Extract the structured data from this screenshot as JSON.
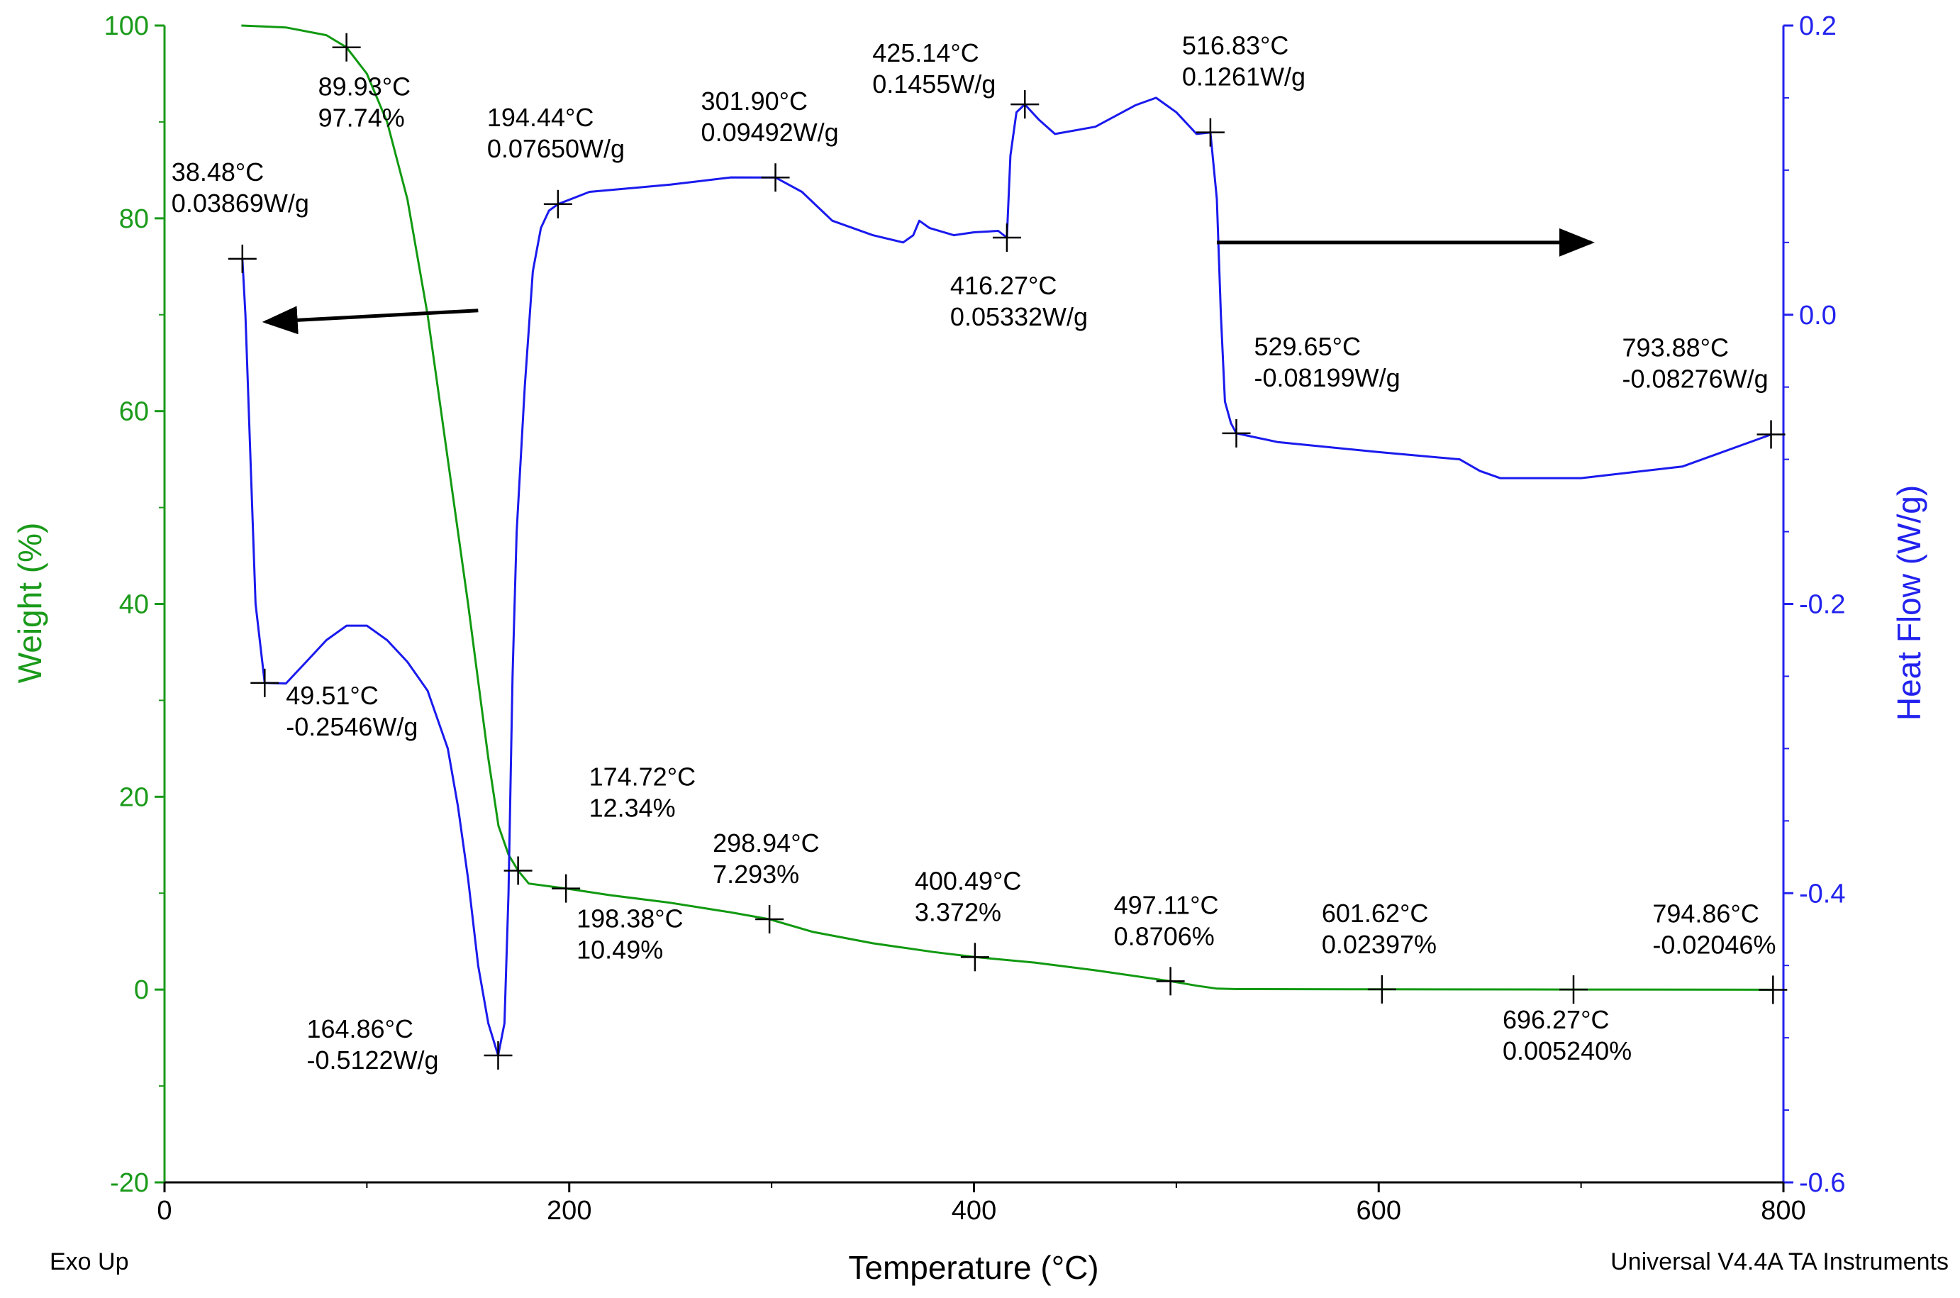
{
  "chart_data": {
    "type": "line",
    "xlabel": "Temperature (°C)",
    "ylabel_left": "Weight (%)",
    "ylabel_right": "Heat Flow (W/g)",
    "xlim": [
      0,
      800
    ],
    "ylim_left": [
      -20,
      100
    ],
    "ylim_right": [
      -0.6,
      0.2
    ],
    "x_ticks": [
      "0",
      "200",
      "400",
      "600",
      "800"
    ],
    "y_ticks_left": [
      "-20",
      "0",
      "20",
      "40",
      "60",
      "80",
      "100"
    ],
    "y_ticks_right": [
      "-0.6",
      "-0.4",
      "-0.2",
      "0.0",
      "0.2"
    ],
    "colors": {
      "weight": "#119911",
      "heat": "#1a1aee",
      "axis_left": "#1a9a1a",
      "axis_right": "#2222ee"
    },
    "footer_left": "Exo Up",
    "footer_right": "Universal V4.4A TA Instruments",
    "series": [
      {
        "name": "Weight",
        "axis": "left",
        "x": [
          38,
          60,
          80,
          89.93,
          100,
          110,
          120,
          130,
          140,
          150,
          155,
          160,
          165,
          170,
          174.72,
          180,
          198.38,
          220,
          250,
          280,
          298.94,
          320,
          350,
          380,
          400.49,
          430,
          460,
          497.11,
          510,
          520,
          530,
          601.62,
          696.27,
          794.86
        ],
        "values": [
          100,
          99.8,
          99,
          97.74,
          95,
          90,
          82,
          70,
          55,
          40,
          32,
          24,
          17,
          14,
          12.34,
          11,
          10.49,
          9.8,
          9,
          8,
          7.293,
          6,
          4.8,
          3.9,
          3.372,
          2.8,
          2,
          0.8706,
          0.4,
          0.1,
          0.05,
          0.02397,
          0.00524,
          -0.02046
        ]
      },
      {
        "name": "Heat Flow",
        "axis": "right",
        "x": [
          38.48,
          40,
          45,
          49.51,
          60,
          70,
          80,
          90,
          100,
          110,
          120,
          130,
          140,
          145,
          150,
          155,
          160,
          164.86,
          168,
          170,
          172,
          174,
          178,
          182,
          186,
          190,
          194.44,
          210,
          250,
          280,
          301.9,
          315,
          330,
          350,
          365,
          370,
          373,
          378,
          390,
          400,
          412,
          416.27,
          418,
          421,
          425.14,
          432,
          440,
          460,
          480,
          490,
          500,
          510,
          516.83,
          520,
          522,
          524,
          527,
          529.65,
          550,
          600,
          640,
          650,
          660,
          700,
          750,
          794
        ],
        "values": [
          0.03869,
          0.0,
          -0.2,
          -0.2546,
          -0.255,
          -0.24,
          -0.225,
          -0.215,
          -0.215,
          -0.225,
          -0.24,
          -0.26,
          -0.3,
          -0.34,
          -0.39,
          -0.45,
          -0.49,
          -0.5122,
          -0.49,
          -0.4,
          -0.25,
          -0.15,
          -0.05,
          0.03,
          0.06,
          0.072,
          0.0765,
          0.085,
          0.09,
          0.095,
          0.09492,
          0.085,
          0.065,
          0.055,
          0.05,
          0.055,
          0.065,
          0.06,
          0.055,
          0.057,
          0.058,
          0.05332,
          0.11,
          0.14,
          0.1455,
          0.135,
          0.125,
          0.13,
          0.145,
          0.15,
          0.14,
          0.125,
          0.1261,
          0.08,
          0.0,
          -0.06,
          -0.075,
          -0.08199,
          -0.088,
          -0.095,
          -0.1,
          -0.108,
          -0.113,
          -0.113,
          -0.105,
          -0.08276
        ]
      }
    ],
    "markers": [
      {
        "series": "Weight",
        "x": 89.93,
        "y": 97.74,
        "l1": "89.93°C",
        "l2": "97.74%"
      },
      {
        "series": "Weight",
        "x": 174.72,
        "y": 12.34,
        "l1": "174.72°C",
        "l2": "12.34%"
      },
      {
        "series": "Weight",
        "x": 198.38,
        "y": 10.49,
        "l1": "198.38°C",
        "l2": "10.49%"
      },
      {
        "series": "Weight",
        "x": 298.94,
        "y": 7.293,
        "l1": "298.94°C",
        "l2": "7.293%"
      },
      {
        "series": "Weight",
        "x": 400.49,
        "y": 3.372,
        "l1": "400.49°C",
        "l2": "3.372%"
      },
      {
        "series": "Weight",
        "x": 497.11,
        "y": 0.8706,
        "l1": "497.11°C",
        "l2": "0.8706%"
      },
      {
        "series": "Weight",
        "x": 601.62,
        "y": 0.02397,
        "l1": "601.62°C",
        "l2": "0.02397%"
      },
      {
        "series": "Weight",
        "x": 696.27,
        "y": 0.00524,
        "l1": "696.27°C",
        "l2": "0.005240%"
      },
      {
        "series": "Weight",
        "x": 794.86,
        "y": -0.02046,
        "l1": "794.86°C",
        "l2": "-0.02046%"
      },
      {
        "series": "Heat Flow",
        "x": 38.48,
        "y": 0.03869,
        "l1": "38.48°C",
        "l2": "0.03869W/g"
      },
      {
        "series": "Heat Flow",
        "x": 49.51,
        "y": -0.2546,
        "l1": "49.51°C",
        "l2": "-0.2546W/g"
      },
      {
        "series": "Heat Flow",
        "x": 164.86,
        "y": -0.5122,
        "l1": "164.86°C",
        "l2": "-0.5122W/g"
      },
      {
        "series": "Heat Flow",
        "x": 194.44,
        "y": 0.0765,
        "l1": "194.44°C",
        "l2": "0.07650W/g"
      },
      {
        "series": "Heat Flow",
        "x": 301.9,
        "y": 0.09492,
        "l1": "301.90°C",
        "l2": "0.09492W/g"
      },
      {
        "series": "Heat Flow",
        "x": 416.27,
        "y": 0.05332,
        "l1": "416.27°C",
        "l2": "0.05332W/g"
      },
      {
        "series": "Heat Flow",
        "x": 425.14,
        "y": 0.1455,
        "l1": "425.14°C",
        "l2": "0.1455W/g"
      },
      {
        "series": "Heat Flow",
        "x": 516.83,
        "y": 0.1261,
        "l1": "516.83°C",
        "l2": "0.1261W/g"
      },
      {
        "series": "Heat Flow",
        "x": 529.65,
        "y": -0.08199,
        "l1": "529.65°C",
        "l2": "-0.08199W/g"
      },
      {
        "series": "Heat Flow",
        "x": 793.88,
        "y": -0.08276,
        "l1": "793.88°C",
        "l2": "-0.08276W/g"
      }
    ],
    "arrows": [
      {
        "points_to": "left axis",
        "from_x": 155,
        "to_x": 50,
        "y": 70,
        "axis": "left"
      },
      {
        "points_to": "right axis",
        "from_x": 520,
        "to_x": 705,
        "y": 0.05,
        "axis": "right"
      }
    ]
  }
}
